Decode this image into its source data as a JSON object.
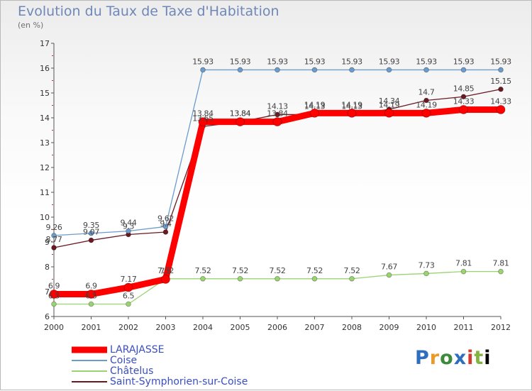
{
  "chart_data": {
    "type": "line",
    "title": "Evolution du Taux de Taxe d'Habitation",
    "subtitle": "(en %)",
    "categories": [
      "2000",
      "2001",
      "2002",
      "2003",
      "2004",
      "2005",
      "2006",
      "2007",
      "2008",
      "2009",
      "2010",
      "2011",
      "2012"
    ],
    "ylim": [
      6,
      17
    ],
    "yticks": [
      "6",
      "7",
      "8",
      "9",
      "10",
      "11",
      "12",
      "13",
      "14",
      "15",
      "16",
      "17"
    ],
    "series": [
      {
        "name": "Saint-Symphorien-sur-Coise",
        "color": "#6a1822",
        "values": [
          8.77,
          9.07,
          9.3,
          9.4,
          13.65,
          13.84,
          14.13,
          14.13,
          14.13,
          14.34,
          14.7,
          14.85,
          15.15
        ],
        "labels": [
          "8.77",
          "9.07",
          "9.3",
          "9.4",
          "13.65",
          "13.84",
          "14.13",
          "14.13",
          "14.13",
          "14.34",
          "14.7",
          "14.85",
          "15.15"
        ]
      },
      {
        "name": "Châtelus",
        "color": "#9ad471",
        "values": [
          6.5,
          6.5,
          6.5,
          7.52,
          7.52,
          7.52,
          7.52,
          7.52,
          7.52,
          7.67,
          7.73,
          7.81,
          7.81
        ],
        "labels": [
          "6.5",
          "6.5",
          "6.5",
          "7.52",
          "7.52",
          "7.52",
          "7.52",
          "7.52",
          "7.52",
          "7.67",
          "7.73",
          "7.81",
          "7.81"
        ]
      },
      {
        "name": "Coise",
        "color": "#6b9ccc",
        "values": [
          9.26,
          9.35,
          9.44,
          9.62,
          15.93,
          15.93,
          15.93,
          15.93,
          15.93,
          15.93,
          15.93,
          15.93,
          15.93
        ],
        "labels": [
          "9.26",
          "9.35",
          "9.44",
          "9.62",
          "15.93",
          "15.93",
          "15.93",
          "15.93",
          "15.93",
          "15.93",
          "15.93",
          "15.93",
          "15.93"
        ]
      },
      {
        "name": "LARAJASSE",
        "color": "#ff0000",
        "values": [
          6.9,
          6.9,
          7.17,
          7.5,
          13.84,
          13.84,
          13.84,
          14.19,
          14.19,
          14.19,
          14.19,
          14.33,
          14.33
        ],
        "labels": [
          "6.9",
          "6.9",
          "7.17",
          "7.5",
          "13.84",
          "13.84",
          "13.84",
          "14.19",
          "14.19",
          "14.19",
          "14.19",
          "14.33",
          "14.33"
        ]
      }
    ],
    "legend": {
      "position": "bottom-left",
      "items": [
        {
          "label": "LARAJASSE",
          "color": "#ff0000"
        },
        {
          "label": "Coise",
          "color": "#6b9ccc"
        },
        {
          "label": "Châtelus",
          "color": "#9ad471"
        },
        {
          "label": "Saint-Symphorien-sur-Coise",
          "color": "#6a1822"
        }
      ]
    }
  },
  "brand": {
    "letters": [
      "P",
      "r",
      "o",
      "x",
      "i",
      "t",
      "i"
    ]
  }
}
